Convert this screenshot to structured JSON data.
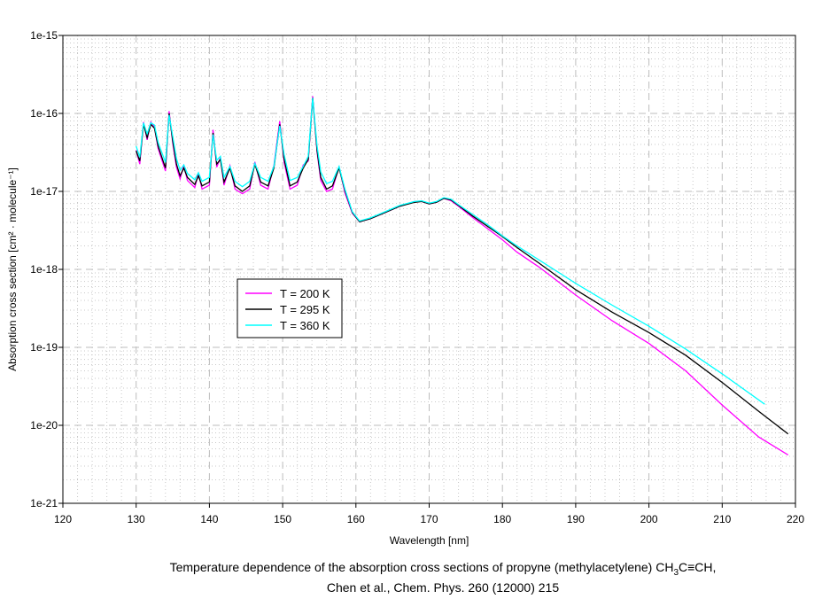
{
  "chart_data": {
    "type": "line",
    "xlabel": "Wavelength [nm]",
    "ylabel": "Absorption cross section [cm² · molecule⁻¹]",
    "xlim": [
      120,
      220
    ],
    "ylim": [
      1e-21,
      1e-15
    ],
    "yscale": "log",
    "xticks": [
      "120",
      "130",
      "140",
      "150",
      "160",
      "170",
      "180",
      "190",
      "200",
      "210",
      "220"
    ],
    "yticks": [
      "1e-15",
      "1e-16",
      "1e-17",
      "1e-18",
      "1e-19",
      "1e-20",
      "1e-21"
    ],
    "grid": true,
    "legend_placement": "center-left",
    "caption": {
      "line1_prefix": "Temperature dependence of the absorption cross sections of propyne (methylacetylene) CH",
      "line1_sub": "3",
      "line1_suffix": "C≡CH,",
      "line2": "Chen et al., Chem. Phys. 260 (12000) 215"
    },
    "series": [
      {
        "name": "T = 200 K",
        "color": "#ff00ff",
        "x": [
          130,
          130.5,
          131,
          131.5,
          132,
          132.5,
          133,
          134,
          134.5,
          135,
          135.5,
          136,
          136.5,
          137,
          138,
          138.5,
          139,
          140,
          140.5,
          141,
          141.5,
          142,
          142.8,
          143.5,
          144.5,
          145.5,
          146.2,
          147,
          148,
          148.8,
          149.6,
          150.2,
          151,
          152,
          152.8,
          153.5,
          154.1,
          154.7,
          155.2,
          156,
          156.8,
          157.7,
          158.5,
          159.5,
          160.5,
          162,
          164,
          166,
          168,
          169,
          170,
          171,
          172,
          173,
          174,
          176,
          178,
          180,
          182,
          185,
          190,
          195,
          200,
          205,
          210,
          215,
          219
        ],
        "log10_y": [
          -16.47,
          -16.65,
          -16.11,
          -16.34,
          -16.11,
          -16.18,
          -16.45,
          -16.74,
          -15.97,
          -16.39,
          -16.69,
          -16.84,
          -16.67,
          -16.86,
          -16.95,
          -16.77,
          -16.97,
          -16.92,
          -16.21,
          -16.69,
          -16.57,
          -16.92,
          -16.67,
          -16.97,
          -17.03,
          -16.97,
          -16.62,
          -16.92,
          -16.97,
          -16.67,
          -16.1,
          -16.63,
          -16.97,
          -16.92,
          -16.66,
          -16.61,
          -15.78,
          -16.5,
          -16.86,
          -17.0,
          -16.97,
          -16.68,
          -17.02,
          -17.28,
          -17.39,
          -17.35,
          -17.27,
          -17.19,
          -17.13,
          -17.13,
          -17.16,
          -17.14,
          -17.09,
          -17.12,
          -17.19,
          -17.34,
          -17.48,
          -17.62,
          -17.78,
          -17.97,
          -18.33,
          -18.66,
          -18.95,
          -19.3,
          -19.74,
          -20.15,
          -20.38
        ]
      },
      {
        "name": "T = 295 K",
        "color": "#000000",
        "x": [
          130,
          130.5,
          131,
          131.5,
          132,
          132.5,
          133,
          134,
          134.5,
          135,
          135.5,
          136,
          136.5,
          137,
          138,
          138.5,
          139,
          140,
          140.5,
          141,
          141.5,
          142,
          142.8,
          143.5,
          144.5,
          145.5,
          146.2,
          147,
          148,
          148.8,
          149.6,
          150.2,
          151,
          152,
          152.8,
          153.5,
          154.1,
          154.7,
          155.2,
          156,
          156.8,
          157.7,
          158.5,
          159.5,
          160.5,
          162,
          164,
          166,
          168,
          169,
          170,
          171,
          172,
          173,
          174,
          176,
          178,
          180,
          182,
          185,
          190,
          195,
          200,
          205,
          210,
          215,
          219
        ],
        "log10_y": [
          -16.48,
          -16.61,
          -16.14,
          -16.31,
          -16.14,
          -16.19,
          -16.42,
          -16.7,
          -16.0,
          -16.36,
          -16.65,
          -16.8,
          -16.7,
          -16.82,
          -16.91,
          -16.8,
          -16.93,
          -16.88,
          -16.25,
          -16.65,
          -16.59,
          -16.88,
          -16.7,
          -16.93,
          -17.0,
          -16.93,
          -16.65,
          -16.88,
          -16.93,
          -16.7,
          -16.14,
          -16.59,
          -16.93,
          -16.88,
          -16.7,
          -16.59,
          -15.8,
          -16.48,
          -16.82,
          -16.97,
          -16.93,
          -16.7,
          -16.99,
          -17.27,
          -17.39,
          -17.35,
          -17.27,
          -17.19,
          -17.14,
          -17.13,
          -17.16,
          -17.14,
          -17.09,
          -17.11,
          -17.18,
          -17.32,
          -17.45,
          -17.58,
          -17.72,
          -17.92,
          -18.26,
          -18.55,
          -18.81,
          -19.1,
          -19.45,
          -19.82,
          -20.11
        ]
      },
      {
        "name": "T = 360 K",
        "color": "#00ffff",
        "x": [
          130,
          130.5,
          131,
          131.5,
          132,
          132.5,
          133,
          134,
          134.5,
          135,
          135.5,
          136,
          136.5,
          137,
          138,
          138.5,
          139,
          140,
          140.5,
          141,
          141.5,
          142,
          142.8,
          143.5,
          144.5,
          145.5,
          146.2,
          147,
          148,
          148.8,
          149.6,
          150.2,
          151,
          152,
          152.8,
          153.5,
          154.1,
          154.7,
          155.2,
          156,
          156.8,
          157.7,
          158.5,
          159.5,
          160.5,
          162,
          164,
          166,
          168,
          169,
          170,
          171,
          172,
          173,
          174,
          176,
          178,
          180,
          182,
          185,
          190,
          195,
          200,
          205,
          210,
          215.8
        ],
        "log10_y": [
          -16.42,
          -16.56,
          -16.12,
          -16.26,
          -16.12,
          -16.15,
          -16.37,
          -16.63,
          -16.02,
          -16.3,
          -16.58,
          -16.73,
          -16.66,
          -16.77,
          -16.85,
          -16.76,
          -16.87,
          -16.82,
          -16.27,
          -16.6,
          -16.55,
          -16.82,
          -16.68,
          -16.87,
          -16.94,
          -16.87,
          -16.64,
          -16.82,
          -16.87,
          -16.68,
          -16.16,
          -16.53,
          -16.86,
          -16.82,
          -16.68,
          -16.55,
          -15.8,
          -16.42,
          -16.75,
          -16.9,
          -16.87,
          -16.68,
          -16.97,
          -17.26,
          -17.38,
          -17.34,
          -17.26,
          -17.18,
          -17.13,
          -17.12,
          -17.15,
          -17.13,
          -17.08,
          -17.1,
          -17.17,
          -17.3,
          -17.43,
          -17.57,
          -17.7,
          -17.88,
          -18.18,
          -18.46,
          -18.73,
          -19.02,
          -19.34,
          -19.73
        ]
      }
    ]
  }
}
